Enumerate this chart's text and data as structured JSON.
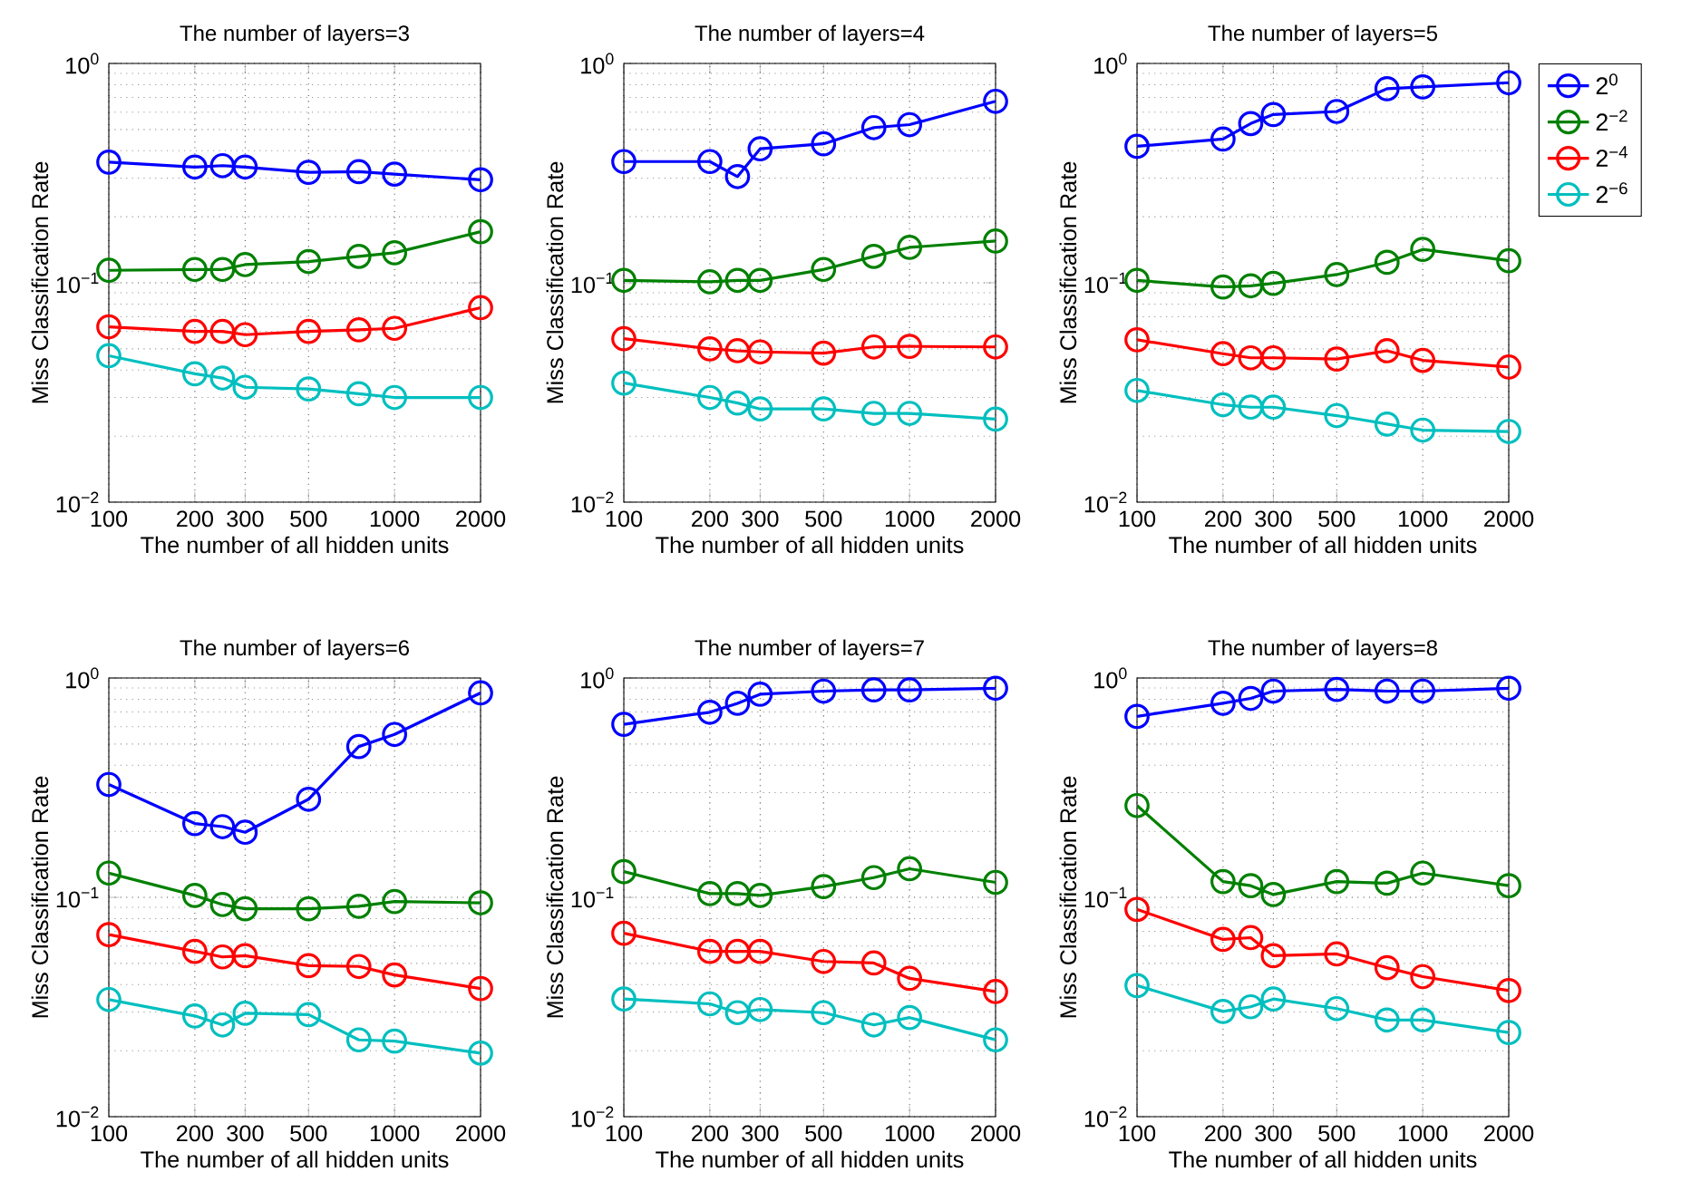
{
  "chart_data": [
    {
      "type": "line",
      "title": "The number of layers=3",
      "xlabel": "The number of all hidden units",
      "ylabel": "Miss Classification Rate",
      "log": "xy",
      "grid": true,
      "marker": "circle",
      "x": [
        100,
        200,
        250,
        300,
        500,
        750,
        1000,
        2000
      ],
      "xlim": [
        100,
        2000
      ],
      "ylim": [
        0.01,
        1
      ],
      "xticks": [
        100,
        200,
        300,
        500,
        1000,
        2000
      ],
      "yticks": [
        {
          "value": 0.01,
          "label": "10$^{−2}$"
        },
        {
          "value": 0.1,
          "label": "10$^{−1}$"
        },
        {
          "value": 1,
          "label": "10$^{0}$"
        }
      ],
      "series": [
        {
          "color": "#0000ff",
          "values": [
            0.355,
            0.337,
            0.342,
            0.337,
            0.319,
            0.321,
            0.313,
            0.295
          ]
        },
        {
          "color": "#008000",
          "values": [
            0.114,
            0.115,
            0.115,
            0.121,
            0.125,
            0.132,
            0.137,
            0.171
          ]
        },
        {
          "color": "#ff0000",
          "values": [
            0.063,
            0.06,
            0.06,
            0.058,
            0.06,
            0.061,
            0.062,
            0.077
          ]
        },
        {
          "color": "#00bfbf",
          "values": [
            0.0465,
            0.0385,
            0.0368,
            0.0334,
            0.0328,
            0.0312,
            0.03,
            0.03
          ]
        }
      ]
    },
    {
      "type": "line",
      "title": "The number of layers=4",
      "xlabel": "The number of all hidden units",
      "ylabel": "Miss Classification Rate",
      "log": "xy",
      "grid": true,
      "marker": "circle",
      "x": [
        100,
        200,
        250,
        300,
        500,
        750,
        1000,
        2000
      ],
      "xlim": [
        100,
        2000
      ],
      "ylim": [
        0.01,
        1
      ],
      "xticks": [
        100,
        200,
        300,
        500,
        1000,
        2000
      ],
      "yticks": [
        {
          "value": 0.01,
          "label": "10$^{−2}$"
        },
        {
          "value": 0.1,
          "label": "10$^{−1}$"
        },
        {
          "value": 1,
          "label": "10$^{0}$"
        }
      ],
      "series": [
        {
          "color": "#0000ff",
          "values": [
            0.357,
            0.357,
            0.305,
            0.408,
            0.43,
            0.51,
            0.526,
            0.672
          ]
        },
        {
          "color": "#008000",
          "values": [
            0.1026,
            0.101,
            0.1026,
            0.1026,
            0.115,
            0.132,
            0.145,
            0.155
          ]
        },
        {
          "color": "#ff0000",
          "values": [
            0.0556,
            0.05,
            0.049,
            0.0484,
            0.0478,
            0.051,
            0.0513,
            0.051
          ]
        },
        {
          "color": "#00bfbf",
          "values": [
            0.0349,
            0.03,
            0.0283,
            0.0266,
            0.0266,
            0.0254,
            0.0254,
            0.0239
          ]
        }
      ]
    },
    {
      "type": "line",
      "title": "The number of layers=5",
      "xlabel": "The number of all hidden units",
      "ylabel": "Miss Classification Rate",
      "log": "xy",
      "grid": true,
      "marker": "circle",
      "legend": "top right",
      "x": [
        100,
        200,
        250,
        300,
        500,
        750,
        1000,
        2000
      ],
      "xlim": [
        100,
        2000
      ],
      "ylim": [
        0.01,
        1
      ],
      "xticks": [
        100,
        200,
        300,
        500,
        1000,
        2000
      ],
      "yticks": [
        {
          "value": 0.01,
          "label": "10$^{−2}$"
        },
        {
          "value": 0.1,
          "label": "10$^{−1}$"
        },
        {
          "value": 1,
          "label": "10$^{0}$"
        }
      ],
      "series": [
        {
          "name": "2$^{0}$",
          "color": "#0000ff",
          "values": [
            0.419,
            0.452,
            0.532,
            0.585,
            0.604,
            0.767,
            0.782,
            0.817
          ]
        },
        {
          "name": "2$^{−2}$",
          "color": "#008000",
          "values": [
            0.1026,
            0.0957,
            0.0969,
            0.0994,
            0.109,
            0.124,
            0.142,
            0.126
          ]
        },
        {
          "name": "2$^{−4}$",
          "color": "#ff0000",
          "values": [
            0.055,
            0.0475,
            0.0455,
            0.0455,
            0.0449,
            0.049,
            0.0443,
            0.0413
          ]
        },
        {
          "name": "2$^{−6}$",
          "color": "#00bfbf",
          "values": [
            0.0323,
            0.0278,
            0.0271,
            0.0271,
            0.0248,
            0.0227,
            0.0213,
            0.021
          ]
        }
      ]
    },
    {
      "type": "line",
      "title": "The number of layers=6",
      "xlabel": "The number of all hidden units",
      "ylabel": "Miss Classification Rate",
      "log": "xy",
      "grid": true,
      "marker": "circle",
      "x": [
        100,
        200,
        250,
        300,
        500,
        750,
        1000,
        2000
      ],
      "xlim": [
        100,
        2000
      ],
      "ylim": [
        0.01,
        1
      ],
      "xticks": [
        100,
        200,
        300,
        500,
        1000,
        2000
      ],
      "yticks": [
        {
          "value": 0.01,
          "label": "10$^{−2}$"
        },
        {
          "value": 0.1,
          "label": "10$^{−1}$"
        },
        {
          "value": 1,
          "label": "10$^{0}$"
        }
      ],
      "series": [
        {
          "color": "#0000ff",
          "values": [
            0.327,
            0.217,
            0.21,
            0.198,
            0.28,
            0.487,
            0.553,
            0.855
          ]
        },
        {
          "color": "#008000",
          "values": [
            0.129,
            0.102,
            0.0927,
            0.0887,
            0.0887,
            0.091,
            0.0957,
            0.0944
          ]
        },
        {
          "color": "#ff0000",
          "values": [
            0.0676,
            0.0567,
            0.0535,
            0.0542,
            0.0488,
            0.0484,
            0.0443,
            0.0384
          ]
        },
        {
          "color": "#00bfbf",
          "values": [
            0.0342,
            0.0288,
            0.0262,
            0.0296,
            0.0292,
            0.0224,
            0.0221,
            0.0195
          ]
        }
      ]
    },
    {
      "type": "line",
      "title": "The number of layers=7",
      "xlabel": "The number of all hidden units",
      "ylabel": "Miss Classification Rate",
      "log": "xy",
      "grid": true,
      "marker": "circle",
      "x": [
        100,
        200,
        250,
        300,
        500,
        750,
        1000,
        2000
      ],
      "xlim": [
        100,
        2000
      ],
      "ylim": [
        0.01,
        1
      ],
      "xticks": [
        100,
        200,
        300,
        500,
        1000,
        2000
      ],
      "yticks": [
        {
          "value": 0.01,
          "label": "10$^{−2}$"
        },
        {
          "value": 0.1,
          "label": "10$^{−1}$"
        },
        {
          "value": 1,
          "label": "10$^{0}$"
        }
      ],
      "series": [
        {
          "color": "#0000ff",
          "values": [
            0.615,
            0.698,
            0.767,
            0.843,
            0.871,
            0.882,
            0.882,
            0.898
          ]
        },
        {
          "color": "#008000",
          "values": [
            0.131,
            0.104,
            0.104,
            0.102,
            0.112,
            0.123,
            0.135,
            0.117
          ]
        },
        {
          "color": "#ff0000",
          "values": [
            0.0686,
            0.0567,
            0.0567,
            0.0567,
            0.051,
            0.0502,
            0.0427,
            0.0372
          ]
        },
        {
          "color": "#00bfbf",
          "values": [
            0.0344,
            0.0327,
            0.0298,
            0.0308,
            0.0298,
            0.0262,
            0.0283,
            0.0224
          ]
        }
      ]
    },
    {
      "type": "line",
      "title": "The number of layers=8",
      "xlabel": "The number of all hidden units",
      "ylabel": "Miss Classification Rate",
      "log": "xy",
      "grid": true,
      "marker": "circle",
      "x": [
        100,
        200,
        250,
        300,
        500,
        750,
        1000,
        2000
      ],
      "xlim": [
        100,
        2000
      ],
      "ylim": [
        0.01,
        1
      ],
      "xticks": [
        100,
        200,
        300,
        500,
        1000,
        2000
      ],
      "yticks": [
        {
          "value": 0.01,
          "label": "10$^{−2}$"
        },
        {
          "value": 0.1,
          "label": "10$^{−1}$"
        },
        {
          "value": 1,
          "label": "10$^{0}$"
        }
      ],
      "series": [
        {
          "color": "#0000ff",
          "values": [
            0.668,
            0.767,
            0.807,
            0.871,
            0.887,
            0.871,
            0.871,
            0.898
          ]
        },
        {
          "color": "#008000",
          "values": [
            0.262,
            0.118,
            0.113,
            0.103,
            0.118,
            0.116,
            0.129,
            0.113
          ]
        },
        {
          "color": "#ff0000",
          "values": [
            0.0881,
            0.0643,
            0.0655,
            0.0542,
            0.0552,
            0.0478,
            0.0435,
            0.0376
          ]
        },
        {
          "color": "#00bfbf",
          "values": [
            0.0396,
            0.0302,
            0.0317,
            0.0344,
            0.0311,
            0.0276,
            0.0276,
            0.0242
          ]
        }
      ]
    }
  ]
}
